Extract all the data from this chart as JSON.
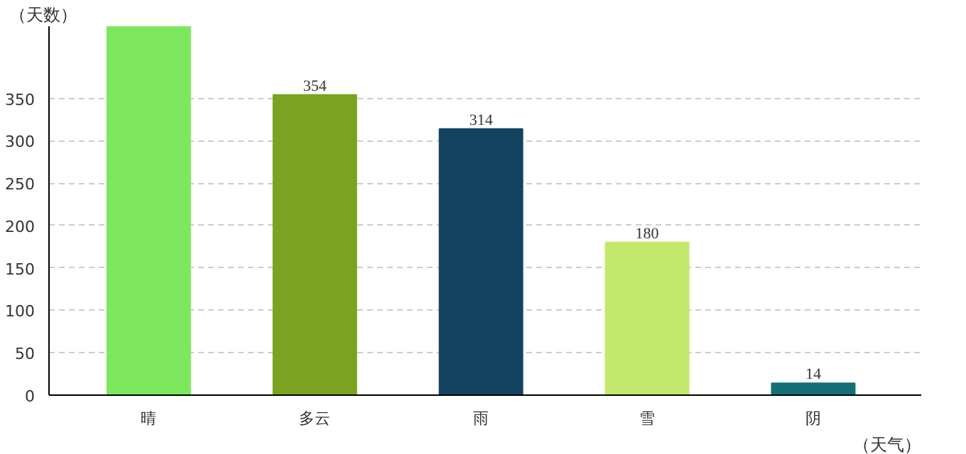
{
  "chart_data": {
    "type": "bar",
    "xlabel": "（天气）",
    "ylabel": "（天数）",
    "categories": [
      "晴",
      "多云",
      "雨",
      "雪",
      "阴"
    ],
    "values": [
      435,
      354,
      314,
      180,
      14
    ],
    "colors": [
      "#7de85e",
      "#7aa31f",
      "#134360",
      "#c2e86c",
      "#137076"
    ],
    "value_labels": [
      null,
      "354",
      "314",
      "180",
      "14"
    ],
    "ylim": [
      0,
      435
    ],
    "yticks": [
      0,
      50,
      100,
      150,
      200,
      250,
      300,
      350
    ],
    "grid": "y"
  }
}
